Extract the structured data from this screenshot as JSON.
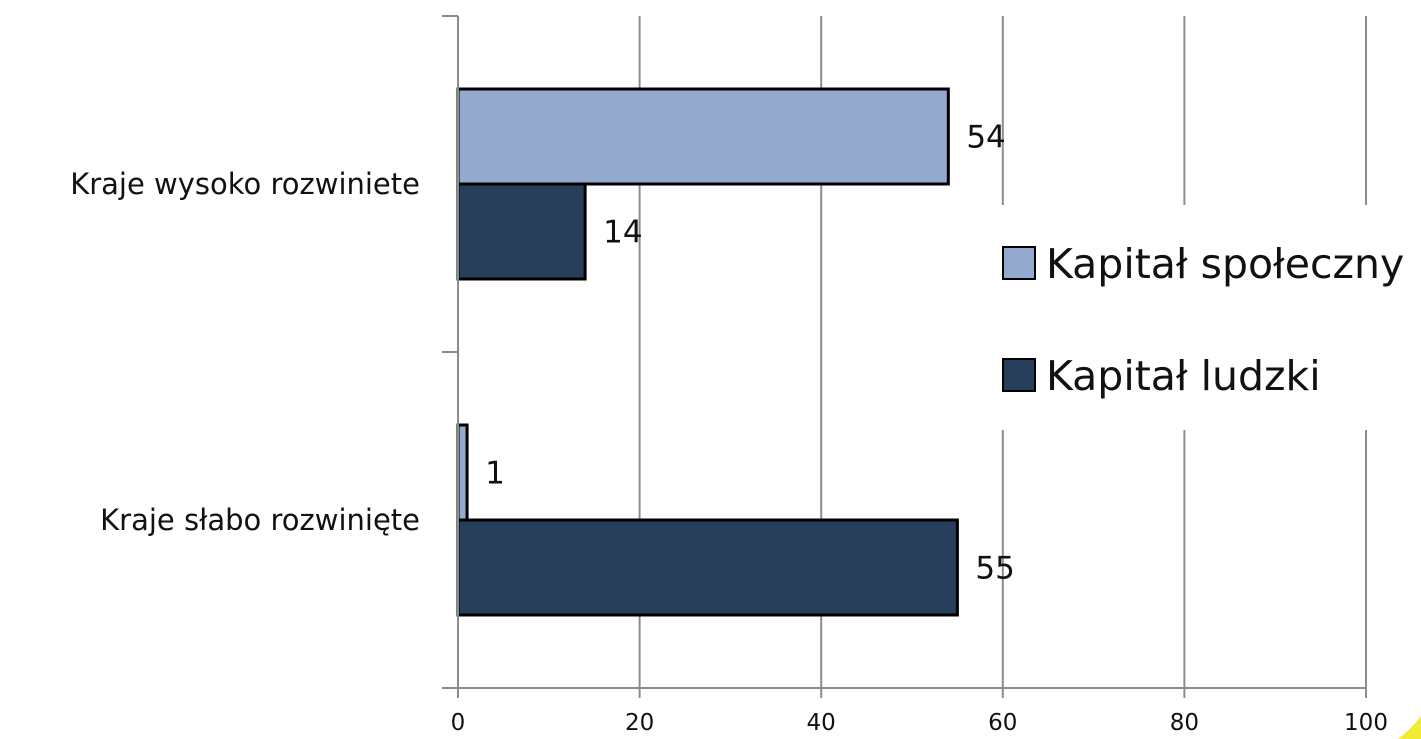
{
  "chart_data": {
    "type": "bar",
    "orientation": "horizontal",
    "categories": [
      "Kraje wysoko rozwiniete",
      "Kraje słabo rozwinięte"
    ],
    "series": [
      {
        "name": "Kapitał społeczny",
        "values": [
          54,
          1
        ],
        "color": "#95a9cf"
      },
      {
        "name": "Kapitał ludzki",
        "values": [
          14,
          55
        ],
        "color": "#283f5c"
      }
    ],
    "xlim": [
      0,
      100
    ],
    "xticks": [
      0,
      20,
      40,
      60,
      80,
      100
    ],
    "xlabel": "",
    "ylabel": "",
    "grid": true,
    "legend_position": "right",
    "data_labels": true,
    "watermark_color": "#f2ea1e"
  }
}
